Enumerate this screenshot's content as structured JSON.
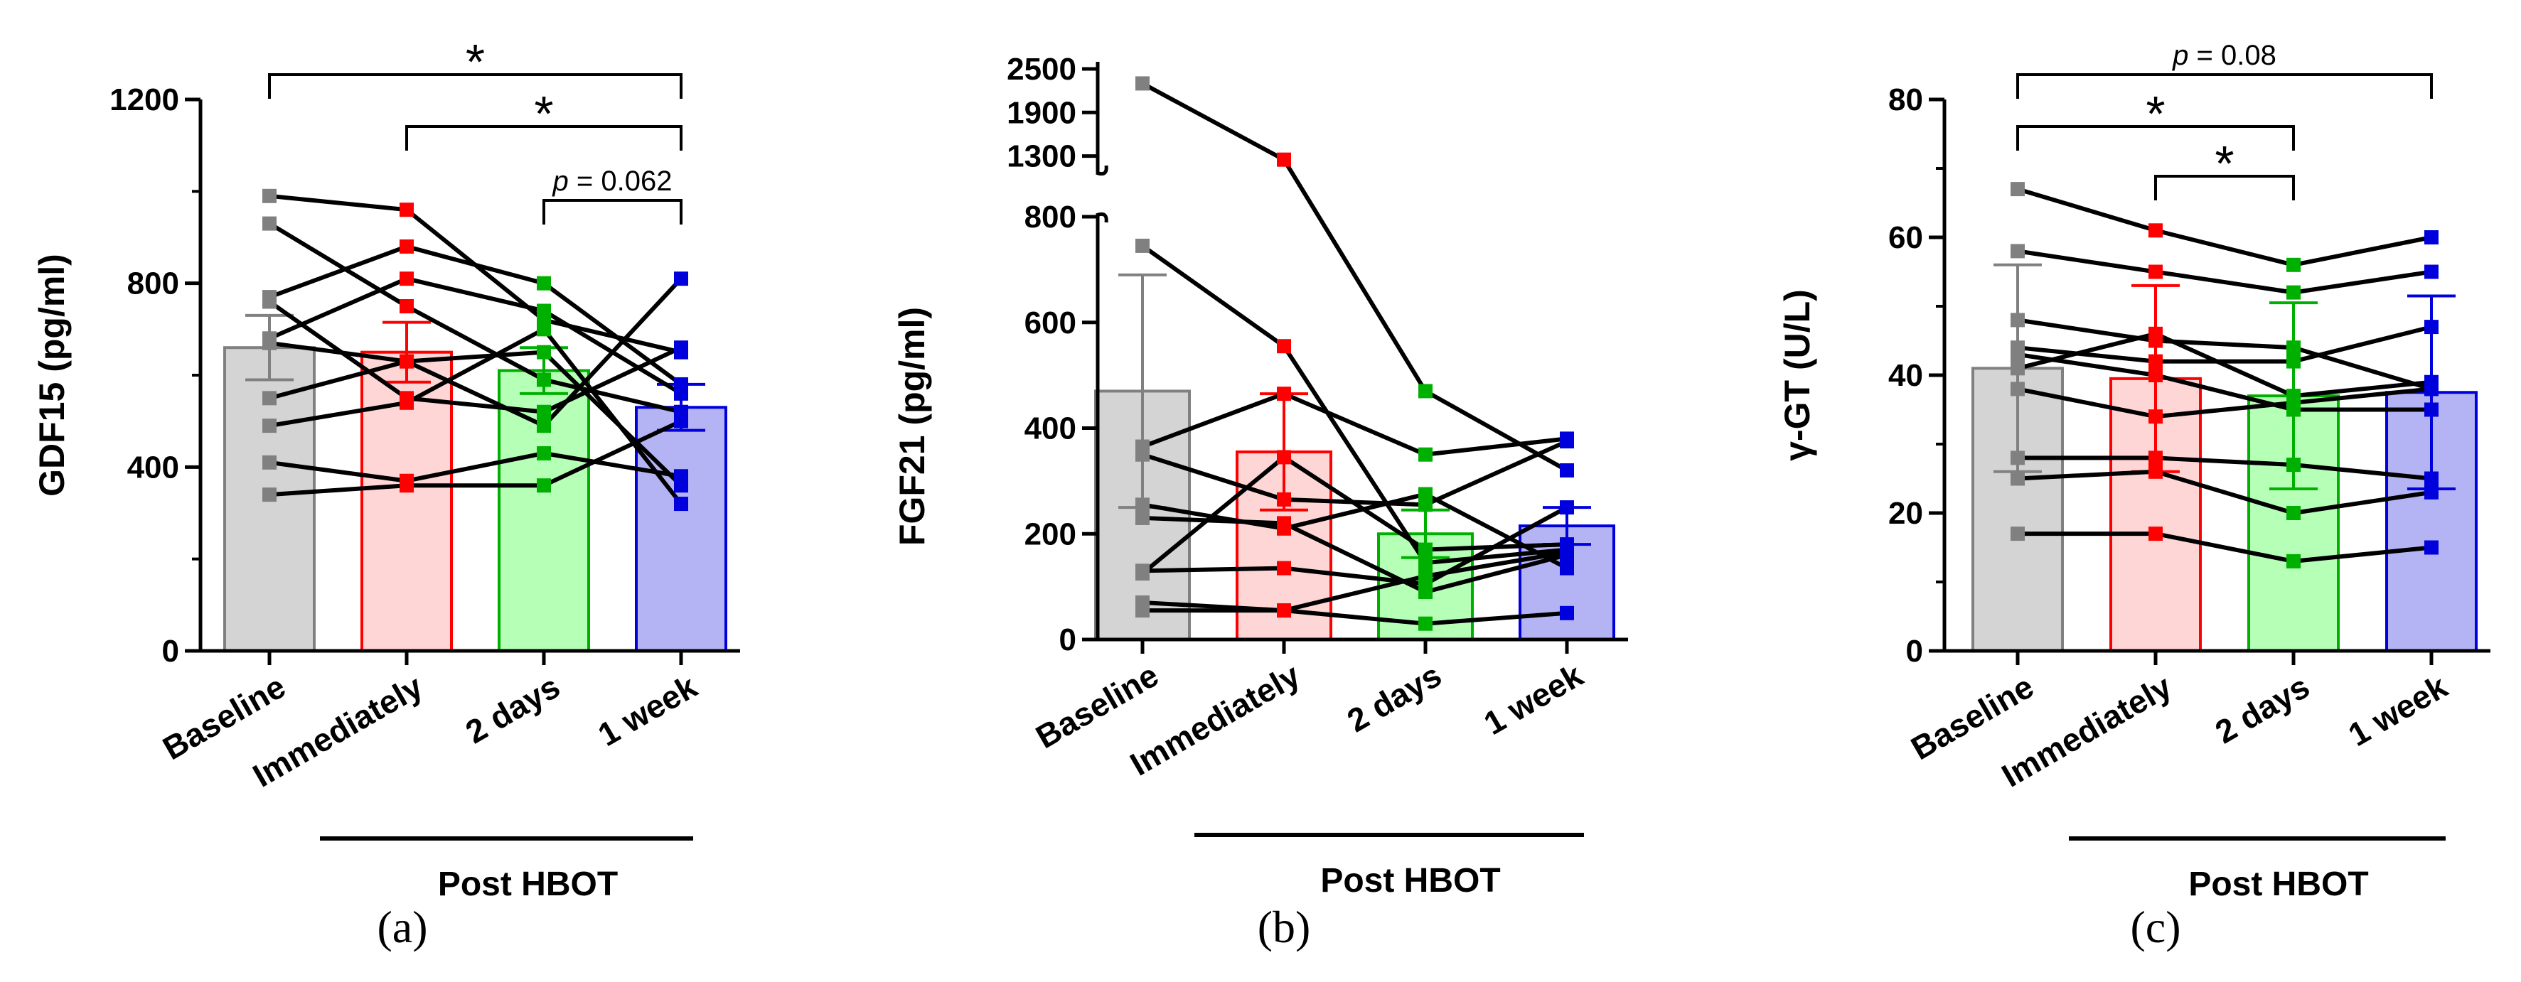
{
  "figure": {
    "group_label": "Post  HBOT",
    "colors": {
      "Baseline": "#808080",
      "Immediately": "#ff0000",
      "2 days": "#00b000",
      "1 week": "#0000dd"
    },
    "fills": {
      "Baseline": "#d4d4d4",
      "Immediately": "#ffd6d6",
      "2 days": "#b6ffb6",
      "1 week": "#b4b4f4"
    }
  },
  "chart_data": [
    {
      "type": "bar",
      "panel_label": "(a)",
      "title": "",
      "ylabel": "GDF15 (pg/ml)",
      "xlabel": "",
      "categories": [
        "Baseline",
        "Immediately",
        "2 days",
        "1 week"
      ],
      "ylim": [
        0,
        1200
      ],
      "yticks": [
        0,
        400,
        800,
        1200
      ],
      "bar_means": [
        660,
        650,
        610,
        530
      ],
      "error_sd": [
        70,
        65,
        50,
        50
      ],
      "subjects": [
        [
          990,
          960,
          720,
          650
        ],
        [
          930,
          750,
          590,
          520
        ],
        [
          770,
          880,
          800,
          580
        ],
        [
          760,
          550,
          520,
          660
        ],
        [
          680,
          810,
          740,
          560
        ],
        [
          670,
          630,
          490,
          810
        ],
        [
          550,
          630,
          650,
          360
        ],
        [
          490,
          540,
          700,
          320
        ],
        [
          410,
          370,
          430,
          380
        ],
        [
          340,
          360,
          360,
          500
        ]
      ],
      "significance": [
        {
          "from": 0,
          "to": 3,
          "label": "*"
        },
        {
          "from": 1,
          "to": 3,
          "label": "*"
        },
        {
          "from": 2,
          "to": 3,
          "label_prefix": "p",
          "label": " = 0.062"
        }
      ]
    },
    {
      "type": "bar",
      "panel_label": "(b)",
      "title": "",
      "ylabel": "FGF21 (pg/ml)",
      "xlabel": "",
      "categories": [
        "Baseline",
        "Immediately",
        "2 days",
        "1 week"
      ],
      "ylim": [
        0,
        2500
      ],
      "axis_break": {
        "lower_max": 800,
        "upper_min": 1100,
        "upper_max": 2500
      },
      "yticks": [
        0,
        200,
        400,
        600,
        800,
        1300,
        1900,
        2500
      ],
      "bar_means": [
        470,
        355,
        200,
        215
      ],
      "error_sd": [
        220,
        110,
        45,
        35
      ],
      "subjects": [
        [
          2300,
          1250,
          470,
          320
        ],
        [
          745,
          555,
          145,
          170
        ],
        [
          365,
          465,
          350,
          380
        ],
        [
          350,
          265,
          255,
          375
        ],
        [
          255,
          210,
          275,
          135
        ],
        [
          230,
          220,
          90,
          160
        ],
        [
          130,
          135,
          105,
          250
        ],
        [
          125,
          345,
          170,
          180
        ],
        [
          70,
          55,
          30,
          50
        ],
        [
          55,
          55,
          120,
          165
        ]
      ],
      "significance": []
    },
    {
      "type": "bar",
      "panel_label": "(c)",
      "title": "",
      "ylabel": "γ-GT (U/L)",
      "xlabel": "",
      "categories": [
        "Baseline",
        "Immediately",
        "2 days",
        "1 week"
      ],
      "ylim": [
        0,
        80
      ],
      "yticks": [
        0,
        20,
        40,
        60,
        80
      ],
      "bar_means": [
        41,
        39.5,
        37,
        37.5
      ],
      "error_sd": [
        15,
        13.5,
        13.5,
        14
      ],
      "subjects": [
        [
          67,
          61,
          56,
          60
        ],
        [
          58,
          55,
          52,
          55
        ],
        [
          48,
          45,
          44,
          38
        ],
        [
          44,
          42,
          42,
          47
        ],
        [
          41,
          46,
          37,
          39
        ],
        [
          43,
          40,
          35,
          35
        ],
        [
          38,
          34,
          36,
          38
        ],
        [
          28,
          28,
          27,
          25
        ],
        [
          25,
          26,
          20,
          23
        ],
        [
          17,
          17,
          13,
          15
        ]
      ],
      "significance": [
        {
          "from": 0,
          "to": 3,
          "label_prefix": "p",
          "label": " = 0.08"
        },
        {
          "from": 0,
          "to": 2,
          "label": "*"
        },
        {
          "from": 1,
          "to": 2,
          "label": "*"
        }
      ]
    }
  ]
}
